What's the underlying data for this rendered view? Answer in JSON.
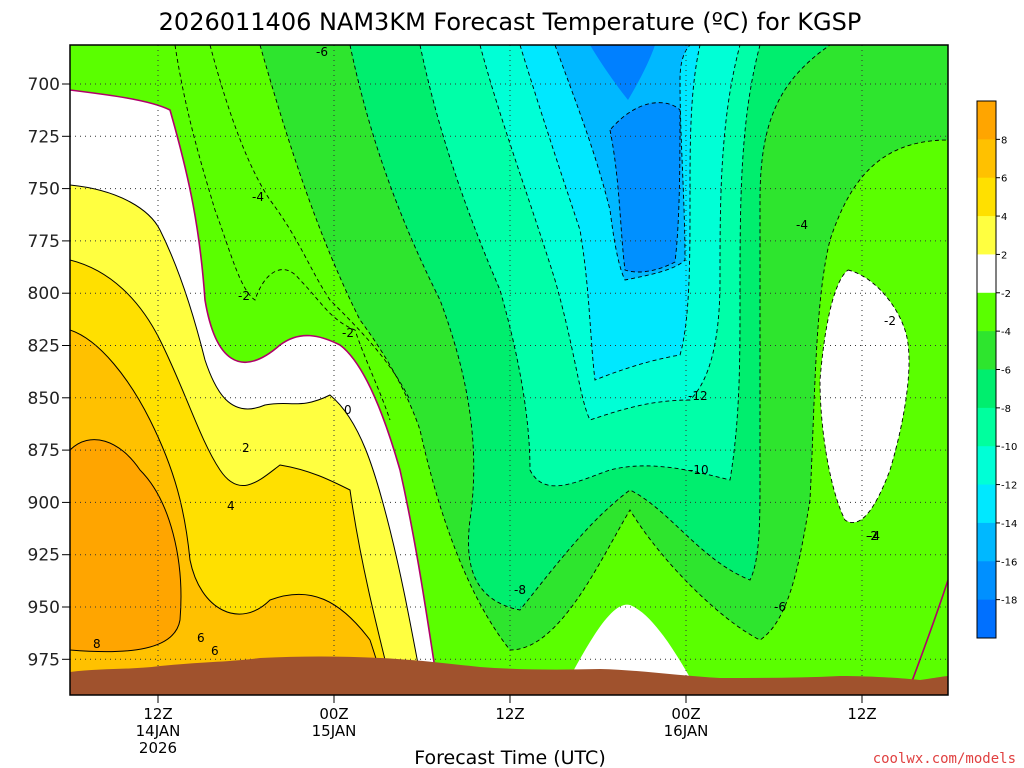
{
  "chart_data": {
    "type": "heatmap",
    "title": "2026011406 NAM3KM Forecast Temperature (ºC) for KGSP",
    "xlabel": "Forecast Time (UTC)",
    "ylabel": "",
    "y_ticks": [
      "700",
      "725",
      "750",
      "775",
      "800",
      "825",
      "850",
      "875",
      "900",
      "925",
      "950",
      "975"
    ],
    "x_ticks": [
      {
        "line1": "12Z",
        "line2": "14JAN",
        "line3": "2026"
      },
      {
        "line1": "00Z",
        "line2": "15JAN",
        "line3": ""
      },
      {
        "line1": "12Z",
        "line2": "",
        "line3": ""
      },
      {
        "line1": "00Z",
        "line2": "16JAN",
        "line3": ""
      },
      {
        "line1": "12Z",
        "line2": "",
        "line3": ""
      }
    ],
    "colorbar": {
      "labels": [
        "8",
        "6",
        "4",
        "2",
        "-2",
        "-4",
        "-6",
        "-8",
        "-10",
        "-12",
        "-14",
        "-16",
        "-18"
      ],
      "colors": [
        "#ffa500",
        "#ffc100",
        "#ffe000",
        "#ffff40",
        "#ffffff",
        "#5aff00",
        "#2ee52e",
        "#00ee6e",
        "#00ff9e",
        "#00ffd6",
        "#00e8ff",
        "#00b8ff",
        "#0090ff",
        "#0070ff"
      ]
    },
    "contour_labels": [
      "-6",
      "-4",
      "-2",
      "-2",
      "-2",
      "0",
      "2",
      "4",
      "6",
      "6",
      "8",
      "-4",
      "-2",
      "-12",
      "-10",
      "-8",
      "-6",
      "-4"
    ],
    "credit": "coolwx.com/models"
  }
}
